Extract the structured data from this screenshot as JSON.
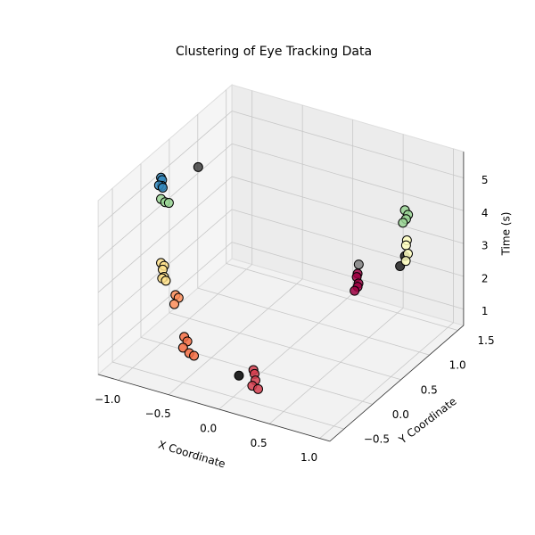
{
  "chart_data": {
    "type": "scatter3d",
    "title": "Clustering of Eye Tracking Data",
    "xlabel": "X Coordinate",
    "ylabel": "Y Coordinate",
    "zlabel": "Time (s)",
    "xlim": [
      -1.2,
      1.1
    ],
    "ylim": [
      -0.75,
      1.6
    ],
    "zlim": [
      0.5,
      5.8
    ],
    "xticks": [
      {
        "value": -1.0,
        "label": "−1.0"
      },
      {
        "value": -0.5,
        "label": "−0.5"
      },
      {
        "value": 0.0,
        "label": "0.0"
      },
      0.5,
      {
        "value": 1.0,
        "label": "1.0"
      }
    ],
    "yticks": [
      {
        "value": -0.5,
        "label": "−0.5"
      },
      {
        "value": 0.0,
        "label": "0.0"
      },
      0.5,
      {
        "value": 1.0,
        "label": "1.0"
      },
      1.5
    ],
    "zticks": [
      1,
      2,
      3,
      4,
      5
    ],
    "grid": true,
    "series": [
      {
        "color": "#3288bd",
        "x": [
          -1.0,
          -1.0,
          -0.98,
          -1.02,
          -1.0
        ],
        "y": [
          0.0,
          0.02,
          -0.02,
          0.0,
          0.03
        ],
        "values": [
          5.55,
          5.45,
          5.35,
          5.3,
          5.2
        ]
      },
      {
        "color": "#99d594",
        "x": [
          -1.0,
          -0.97,
          -0.95
        ],
        "y": [
          0.0,
          0.02,
          0.05
        ],
        "values": [
          4.9,
          4.8,
          4.75
        ]
      },
      {
        "color": "#404040",
        "x": [
          -0.8
        ],
        "y": [
          0.3
        ],
        "values": [
          5.6
        ]
      },
      {
        "color": "#fee08b",
        "x": [
          -1.0,
          -0.98,
          -1.0,
          -0.97,
          -1.0,
          -0.98
        ],
        "y": [
          0.0,
          0.02,
          0.03,
          0.0,
          0.02,
          0.05
        ],
        "values": [
          2.95,
          2.85,
          2.7,
          2.55,
          2.45,
          2.35
        ]
      },
      {
        "color": "#fc8d59",
        "x": [
          -0.8,
          -0.78,
          -0.8
        ],
        "y": [
          -0.1,
          -0.08,
          -0.12
        ],
        "values": [
          2.3,
          2.2,
          2.05
        ]
      },
      {
        "color": "#f46d43",
        "x": [
          -0.6,
          -0.58,
          -0.6,
          -0.55,
          -0.52
        ],
        "y": [
          -0.3,
          -0.28,
          -0.32,
          -0.3,
          -0.27
        ],
        "values": [
          1.5,
          1.35,
          1.2,
          1.05,
          0.95
        ]
      },
      {
        "color": "#000000",
        "x": [
          0.0
        ],
        "y": [
          -0.4
        ],
        "values": [
          1.0
        ]
      },
      {
        "color": "#d53e4f",
        "x": [
          0.2,
          0.2,
          0.22,
          0.2,
          0.23
        ],
        "y": [
          -0.5,
          -0.48,
          -0.5,
          -0.52,
          -0.47
        ],
        "values": [
          1.5,
          1.35,
          1.2,
          1.05,
          0.9
        ]
      },
      {
        "color": "#9e0142",
        "x": [
          0.5,
          0.48,
          0.52,
          0.5,
          0.47
        ],
        "y": [
          0.8,
          0.82,
          0.78,
          0.8,
          0.8
        ],
        "values": [
          2.75,
          2.6,
          2.5,
          2.35,
          2.2
        ]
      },
      {
        "color": "#808080",
        "x": [
          0.5
        ],
        "y": [
          0.82
        ],
        "values": [
          3.0
        ]
      },
      {
        "color": "#222222",
        "x": [
          0.8,
          0.78
        ],
        "y": [
          1.1,
          1.05
        ],
        "values": [
          3.1,
          2.85
        ]
      },
      {
        "color": "#ffffbf",
        "x": [
          0.82,
          0.8,
          0.83,
          0.82
        ],
        "y": [
          1.1,
          1.12,
          1.1,
          1.08
        ],
        "values": [
          3.6,
          3.4,
          3.2,
          3.0
        ]
      },
      {
        "color": "#99d594",
        "x": [
          0.8,
          0.82,
          0.8,
          0.78
        ],
        "y": [
          1.1,
          1.12,
          1.12,
          1.1
        ],
        "values": [
          4.5,
          4.35,
          4.2,
          4.1
        ]
      }
    ]
  }
}
